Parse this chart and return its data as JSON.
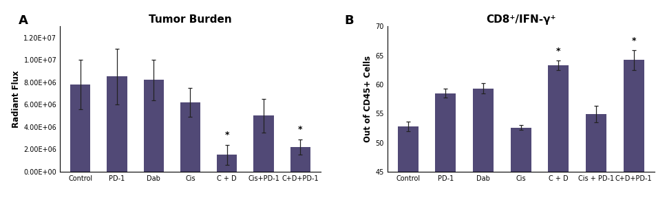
{
  "panel_A": {
    "title": "Tumor Burden",
    "ylabel": "Radiant Flux",
    "categories": [
      "Control",
      "PD-1",
      "Dab",
      "Cis",
      "C + D",
      "Cis+PD-1",
      "C+D+PD-1"
    ],
    "values": [
      7800000.0,
      8500000.0,
      8200000.0,
      6200000.0,
      1500000.0,
      5000000.0,
      2200000.0
    ],
    "errors": [
      2200000.0,
      2500000.0,
      1800000.0,
      1300000.0,
      900000.0,
      1500000.0,
      700000.0
    ],
    "ylim": [
      0,
      13000000.0
    ],
    "yticks": [
      0,
      2000000.0,
      4000000.0,
      6000000.0,
      8000000.0,
      10000000.0,
      12000000.0
    ],
    "ytick_labels": [
      "0.00E+00",
      "2.00E+06",
      "4.00E+06",
      "6.00E+06",
      "8.00E+06",
      "1.00E+07",
      "1.20E+07"
    ],
    "sig_indices": [
      4,
      6
    ],
    "bar_color": "#514976",
    "error_color": "#222222"
  },
  "panel_B": {
    "title": "CD8⁺/IFN-γ⁺",
    "ylabel": "Out of CD45+ Cells",
    "categories": [
      "Control",
      "PD-1",
      "Dab",
      "Cis",
      "C + D",
      "Cis + PD-1",
      "C+D+PD-1"
    ],
    "values": [
      52.8,
      58.5,
      59.3,
      52.6,
      63.3,
      54.9,
      64.2
    ],
    "errors": [
      0.8,
      0.8,
      0.9,
      0.4,
      0.8,
      1.4,
      1.7
    ],
    "ylim": [
      45,
      70
    ],
    "yticks": [
      45,
      50,
      55,
      60,
      65,
      70
    ],
    "ytick_labels": [
      "45",
      "50",
      "55",
      "60",
      "65",
      "70"
    ],
    "sig_indices": [
      4,
      6
    ],
    "bar_color": "#514976",
    "error_color": "#222222"
  },
  "bar_width": 0.55,
  "panel_label_fontsize": 13,
  "title_fontsize": 11,
  "tick_fontsize": 7,
  "ylabel_fontsize": 8.5,
  "bg_color": "#ffffff"
}
